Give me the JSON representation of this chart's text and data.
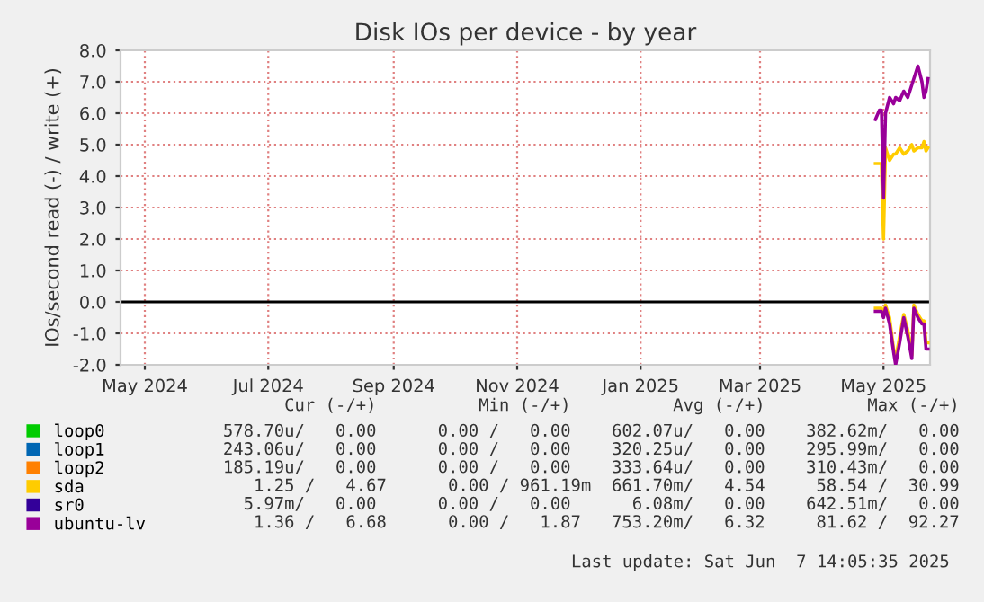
{
  "chart_data": {
    "type": "line",
    "title": "Disk IOs per device - by year",
    "ylabel": "IOs/second read (-) / write (+)",
    "x": [
      "2025-05-11",
      "2025-05-13",
      "2025-05-14",
      "2025-05-15",
      "2025-05-16",
      "2025-05-18",
      "2025-05-20",
      "2025-05-21",
      "2025-05-23",
      "2025-05-25",
      "2025-05-27",
      "2025-05-29",
      "2025-05-30",
      "2025-06-01",
      "2025-06-03",
      "2025-06-04",
      "2025-06-05",
      "2025-06-06"
    ],
    "series": [
      {
        "name": "loop0",
        "color": "#00cc00",
        "values": [
          null,
          null,
          null,
          null,
          null,
          null,
          null,
          null,
          null,
          null,
          null,
          null,
          null,
          null,
          null,
          null,
          null,
          null
        ]
      },
      {
        "name": "loop1",
        "color": "#0066b3",
        "values": [
          null,
          null,
          null,
          null,
          null,
          null,
          null,
          null,
          null,
          null,
          null,
          null,
          null,
          null,
          null,
          null,
          null,
          null
        ]
      },
      {
        "name": "loop2",
        "color": "#ff8000",
        "values": [
          null,
          null,
          null,
          null,
          null,
          null,
          null,
          null,
          null,
          null,
          null,
          null,
          null,
          null,
          null,
          null,
          null,
          null
        ]
      },
      {
        "name": "sda",
        "color": "#ffcc00",
        "values": [
          4.4,
          4.4,
          4.4,
          2.0,
          4.9,
          4.5,
          4.7,
          4.7,
          4.9,
          4.7,
          4.8,
          5.0,
          4.8,
          4.9,
          4.9,
          5.1,
          4.8,
          4.9
        ]
      },
      {
        "color": "#ffcc00",
        "values": [
          -0.2,
          -0.2,
          -0.2,
          -0.4,
          -0.1,
          -0.5,
          -1.5,
          -1.8,
          -1.1,
          -0.4,
          -0.9,
          -1.7,
          -0.1,
          -0.4,
          -0.6,
          -0.6,
          -1.3,
          -1.3
        ]
      },
      {
        "name": "sr0",
        "color": "#330099",
        "values": [
          null,
          null,
          null,
          null,
          null,
          null,
          null,
          null,
          null,
          null,
          null,
          null,
          null,
          null,
          null,
          null,
          null,
          null
        ]
      },
      {
        "name": "ubuntu-lv",
        "color": "#990099",
        "values": [
          5.8,
          6.1,
          6.1,
          3.3,
          6.0,
          6.5,
          6.3,
          6.5,
          6.4,
          6.7,
          6.5,
          6.9,
          7.1,
          7.5,
          7.0,
          6.5,
          6.7,
          7.1
        ]
      },
      {
        "color": "#990099",
        "values": [
          -0.3,
          -0.3,
          -0.3,
          -0.5,
          -0.2,
          -0.7,
          -1.6,
          -2.0,
          -1.3,
          -0.5,
          -1.1,
          -1.8,
          -0.2,
          -0.5,
          -0.7,
          -0.7,
          -1.5,
          -1.5
        ]
      }
    ],
    "xlim": [
      "2024-05-03",
      "2025-06-07"
    ],
    "xticks": [
      {
        "value": "2024-05-15",
        "label": "May 2024"
      },
      {
        "value": "2024-07-15",
        "label": "Jul 2024"
      },
      {
        "value": "2024-09-15",
        "label": "Sep 2024"
      },
      {
        "value": "2024-11-15",
        "label": "Nov 2024"
      },
      {
        "value": "2025-01-15",
        "label": "Jan 2025"
      },
      {
        "value": "2025-03-15",
        "label": "Mar 2025"
      },
      {
        "value": "2025-05-15",
        "label": "May 2025"
      }
    ],
    "ylim": [
      -2.0,
      8.0
    ],
    "yticks": [
      {
        "value": -2,
        "label": "-2.0"
      },
      {
        "value": -1,
        "label": "-1.0"
      },
      {
        "value": 0,
        "label": "0.0"
      },
      {
        "value": 1,
        "label": "1.0"
      },
      {
        "value": 2,
        "label": "2.0"
      },
      {
        "value": 3,
        "label": "3.0"
      },
      {
        "value": 4,
        "label": "4.0"
      },
      {
        "value": 5,
        "label": "5.0"
      },
      {
        "value": 6,
        "label": "6.0"
      },
      {
        "value": 7,
        "label": "7.0"
      },
      {
        "value": 8,
        "label": "8.0"
      }
    ],
    "ref_lines": [
      {
        "axis": "y",
        "value": 0,
        "color": "#000000"
      }
    ],
    "grid": true,
    "legend": "bottom",
    "marker": "none",
    "line_style": "solid",
    "annotations": [
      "Cur (-/+)          Min (-/+)          Avg (-/+)          Max (-/+)",
      "578.70u/   0.00      0.00 /   0.00    602.07u/   0.00    382.62m/   0.00",
      "243.06u/   0.00      0.00 /   0.00    320.25u/   0.00    295.99m/   0.00",
      "185.19u/   0.00      0.00 /   0.00    333.64u/   0.00    310.43m/   0.00",
      "   1.25 /   4.67      0.00 / 961.19m  661.70m/   4.54     58.54 /  30.99",
      "  5.97m/   0.00      0.00 /   0.00      6.08m/   0.00    642.51m/   0.00",
      "   1.36 /   6.68      0.00 /   1.87   753.20m/   6.32     81.62 /  92.27",
      "Last update: Sat Jun  7 14:05:35 2025"
    ]
  }
}
